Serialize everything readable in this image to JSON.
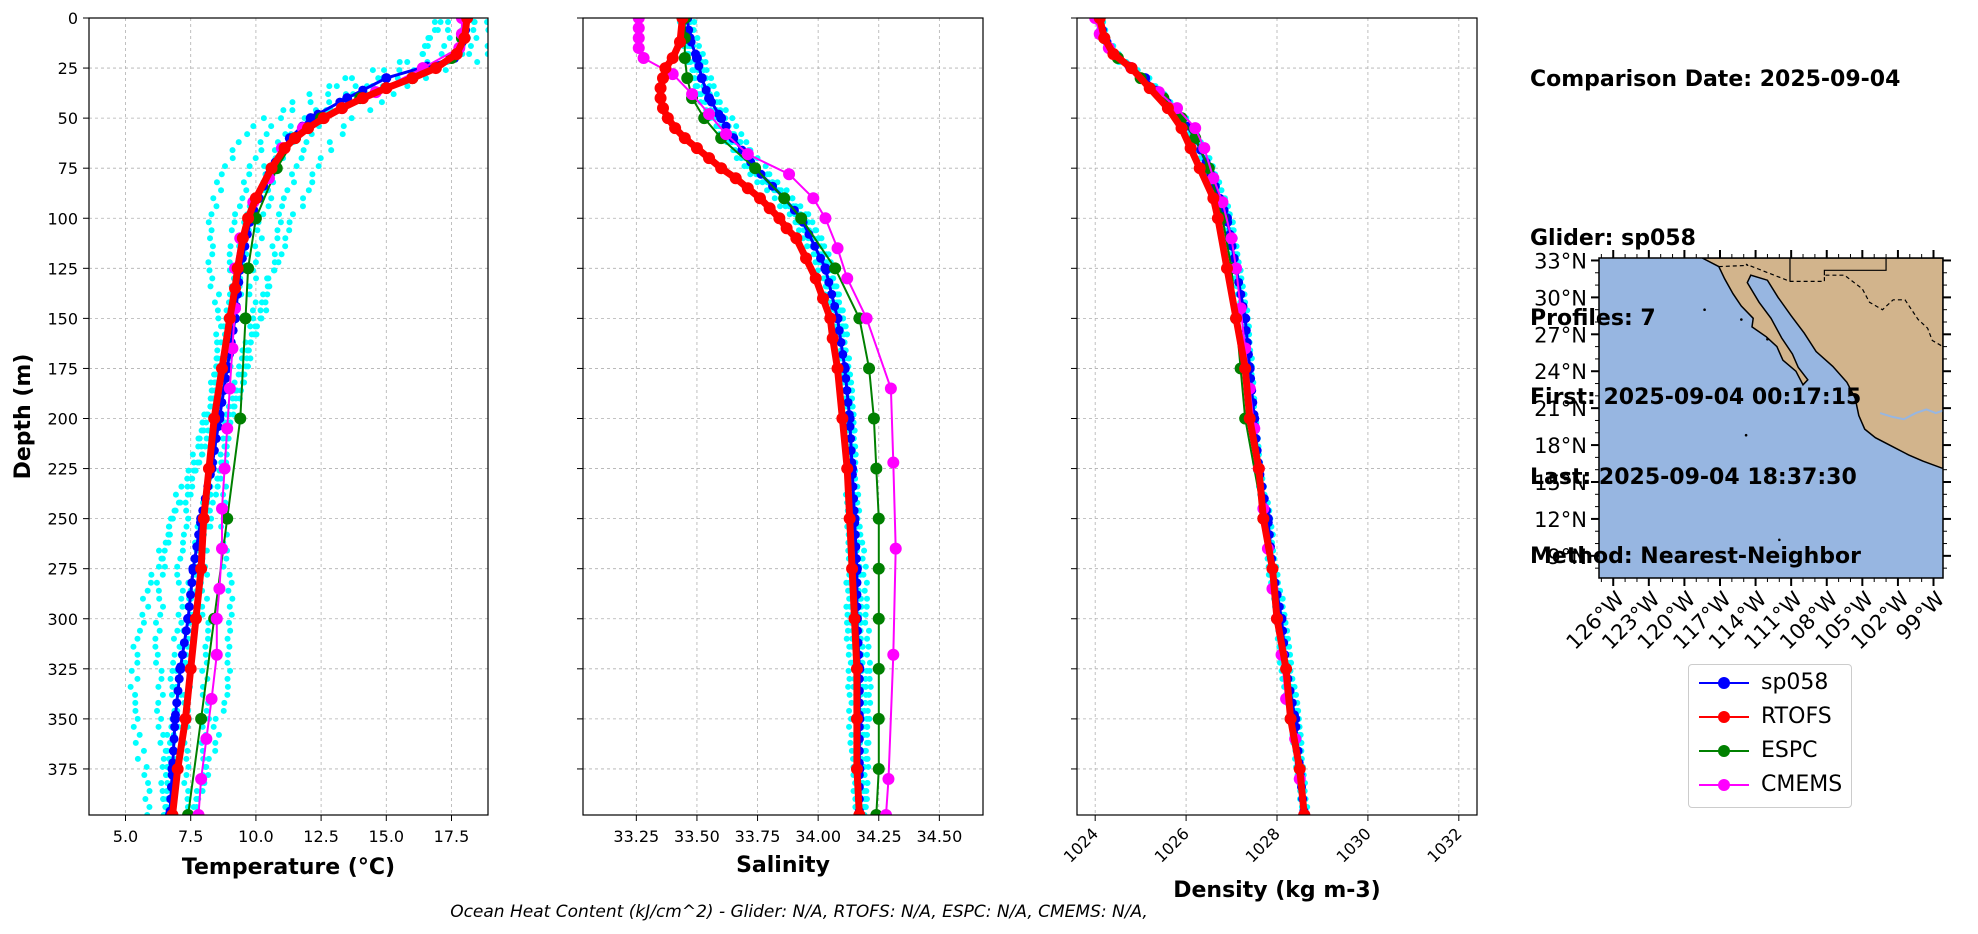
{
  "info": {
    "comparison_date": "Comparison Date: 2025-09-04",
    "glider": "Glider: sp058",
    "profiles": "Profiles: 7",
    "first": "First: 2025-09-04 00:17:15",
    "last": "Last: 2025-09-04 18:37:30",
    "method": "Method: Nearest-Neighbor"
  },
  "footer": "Ocean Heat Content (kJ/cm^2) - Glider: N/A,  RTOFS: N/A,  ESPC: N/A,  CMEMS: N/A,",
  "colors": {
    "sp058": "#0000ff",
    "RTOFS": "#ff0000",
    "ESPC": "#008000",
    "CMEMS": "#ff00ff",
    "profiles": "#00ffff",
    "ocean": "#97b6e1",
    "land": "#d2b48c"
  },
  "legend": [
    {
      "name": "sp058",
      "color": "#0000ff"
    },
    {
      "name": "RTOFS",
      "color": "#ff0000"
    },
    {
      "name": "ESPC",
      "color": "#008000"
    },
    {
      "name": "CMEMS",
      "color": "#ff00ff"
    }
  ],
  "chart_data": [
    {
      "type": "line",
      "xlabel": "Temperature (°C)",
      "ylabel": "Depth (m)",
      "xlim": [
        3.6,
        18.9
      ],
      "ylim": [
        398,
        0
      ],
      "xticks": [
        "5.0",
        "7.5",
        "10.0",
        "12.5",
        "15.0",
        "17.5"
      ],
      "yticks": [
        "0",
        "25",
        "50",
        "75",
        "100",
        "125",
        "150",
        "175",
        "200",
        "225",
        "250",
        "275",
        "300",
        "325",
        "350",
        "375"
      ],
      "grid": true,
      "series": [
        {
          "name": "sp058",
          "depth": [
            0,
            10,
            20,
            30,
            40,
            50,
            60,
            75,
            90,
            100,
            125,
            150,
            175,
            200,
            225,
            250,
            275,
            300,
            325,
            350,
            375,
            398
          ],
          "values": [
            18.1,
            18.0,
            17.6,
            15.0,
            13.5,
            12.1,
            11.3,
            10.6,
            10.1,
            9.8,
            9.4,
            9.2,
            8.9,
            8.6,
            8.3,
            7.9,
            7.6,
            7.4,
            7.1,
            6.9,
            6.8,
            6.7
          ]
        },
        {
          "name": "RTOFS",
          "depth": [
            0,
            10,
            18,
            25,
            30,
            35,
            40,
            45,
            50,
            55,
            60,
            65,
            75,
            90,
            100,
            110,
            125,
            135,
            150,
            175,
            200,
            225,
            250,
            275,
            300,
            325,
            350,
            375,
            398
          ],
          "values": [
            18.1,
            18.0,
            17.7,
            16.9,
            16.0,
            15.0,
            14.1,
            13.3,
            12.6,
            12.0,
            11.5,
            11.1,
            10.6,
            10.0,
            9.7,
            9.5,
            9.3,
            9.2,
            9.0,
            8.7,
            8.4,
            8.2,
            8.0,
            7.9,
            7.7,
            7.5,
            7.3,
            7.0,
            6.8
          ]
        },
        {
          "name": "ESPC",
          "depth": [
            0,
            10,
            20,
            30,
            40,
            50,
            60,
            75,
            100,
            125,
            150,
            200,
            250,
            300,
            350,
            398
          ],
          "values": [
            18.0,
            17.9,
            17.5,
            16.0,
            14.0,
            12.5,
            11.5,
            10.8,
            10.0,
            9.7,
            9.6,
            9.4,
            8.9,
            8.4,
            7.9,
            7.4
          ]
        },
        {
          "name": "CMEMS",
          "depth": [
            0,
            8,
            15,
            25,
            37,
            45,
            55,
            65,
            80,
            92,
            110,
            125,
            145,
            165,
            185,
            205,
            225,
            245,
            265,
            285,
            300,
            318,
            340,
            360,
            380,
            398
          ],
          "values": [
            17.9,
            17.9,
            17.8,
            16.4,
            14.6,
            13.3,
            11.8,
            11.0,
            10.5,
            9.9,
            9.4,
            9.2,
            9.2,
            9.1,
            9.0,
            8.9,
            8.8,
            8.7,
            8.7,
            8.6,
            8.5,
            8.5,
            8.3,
            8.1,
            7.9,
            7.8
          ]
        }
      ]
    },
    {
      "type": "line",
      "xlabel": "Salinity",
      "ylabel": "",
      "xlim": [
        33.03,
        34.68
      ],
      "ylim": [
        398,
        0
      ],
      "xticks": [
        "33.25",
        "33.50",
        "33.75",
        "34.00",
        "34.25",
        "34.50"
      ],
      "grid": true,
      "series": [
        {
          "name": "sp058",
          "depth": [
            0,
            10,
            20,
            30,
            40,
            50,
            60,
            75,
            90,
            100,
            125,
            150,
            175,
            200,
            225,
            250,
            275,
            300,
            325,
            350,
            375,
            398
          ],
          "values": [
            33.46,
            33.47,
            33.5,
            33.52,
            33.55,
            33.6,
            33.65,
            33.74,
            33.86,
            33.93,
            34.03,
            34.08,
            34.11,
            34.13,
            34.14,
            34.15,
            34.16,
            34.16,
            34.17,
            34.17,
            34.17,
            34.17
          ]
        },
        {
          "name": "RTOFS",
          "depth": [
            0,
            12,
            20,
            25,
            30,
            35,
            40,
            45,
            50,
            55,
            60,
            65,
            70,
            75,
            80,
            85,
            90,
            95,
            100,
            105,
            110,
            120,
            130,
            140,
            150,
            160,
            175,
            200,
            225,
            250,
            275,
            300,
            325,
            350,
            375,
            398
          ],
          "values": [
            33.44,
            33.43,
            33.4,
            33.37,
            33.36,
            33.35,
            33.35,
            33.36,
            33.38,
            33.41,
            33.45,
            33.5,
            33.55,
            33.6,
            33.66,
            33.71,
            33.76,
            33.8,
            33.84,
            33.87,
            33.91,
            33.95,
            33.99,
            34.02,
            34.05,
            34.06,
            34.08,
            34.1,
            34.12,
            34.13,
            34.14,
            34.15,
            34.16,
            34.16,
            34.16,
            34.17
          ]
        },
        {
          "name": "ESPC",
          "depth": [
            0,
            10,
            20,
            30,
            40,
            50,
            60,
            75,
            90,
            100,
            125,
            150,
            175,
            200,
            225,
            250,
            275,
            300,
            325,
            350,
            375,
            398
          ],
          "values": [
            33.45,
            33.45,
            33.45,
            33.46,
            33.48,
            33.53,
            33.6,
            33.74,
            33.86,
            33.93,
            34.07,
            34.17,
            34.21,
            34.23,
            34.24,
            34.25,
            34.25,
            34.25,
            34.25,
            34.25,
            34.25,
            34.24
          ]
        },
        {
          "name": "CMEMS",
          "depth": [
            0,
            5,
            10,
            15,
            20,
            28,
            38,
            48,
            58,
            68,
            78,
            90,
            100,
            115,
            130,
            150,
            185,
            222,
            265,
            318,
            380,
            398
          ],
          "values": [
            33.26,
            33.26,
            33.26,
            33.26,
            33.28,
            33.4,
            33.48,
            33.55,
            33.62,
            33.71,
            33.88,
            33.98,
            34.03,
            34.08,
            34.12,
            34.2,
            34.3,
            34.31,
            34.32,
            34.31,
            34.29,
            34.28
          ]
        }
      ]
    },
    {
      "type": "line",
      "xlabel": "Density (kg m-3)",
      "ylabel": "",
      "xlim": [
        1023.6,
        1032.4
      ],
      "ylim": [
        398,
        0
      ],
      "xticks": [
        "1024",
        "1026",
        "1028",
        "1030",
        "1032"
      ],
      "grid": true,
      "series": [
        {
          "name": "sp058",
          "depth": [
            0,
            10,
            20,
            30,
            40,
            50,
            60,
            75,
            100,
            125,
            150,
            175,
            200,
            225,
            250,
            275,
            300,
            325,
            350,
            375,
            398
          ],
          "values": [
            1024.1,
            1024.2,
            1024.5,
            1025.1,
            1025.5,
            1025.9,
            1026.2,
            1026.5,
            1026.9,
            1027.1,
            1027.3,
            1027.4,
            1027.5,
            1027.6,
            1027.8,
            1027.9,
            1028.1,
            1028.2,
            1028.4,
            1028.5,
            1028.6
          ]
        },
        {
          "name": "RTOFS",
          "depth": [
            0,
            10,
            18,
            25,
            35,
            45,
            55,
            65,
            75,
            90,
            100,
            125,
            150,
            175,
            200,
            225,
            250,
            275,
            300,
            325,
            350,
            375,
            398
          ],
          "values": [
            1024.1,
            1024.2,
            1024.4,
            1024.8,
            1025.2,
            1025.6,
            1025.9,
            1026.1,
            1026.3,
            1026.6,
            1026.7,
            1026.9,
            1027.1,
            1027.3,
            1027.4,
            1027.6,
            1027.7,
            1027.9,
            1028.0,
            1028.2,
            1028.3,
            1028.5,
            1028.6
          ]
        },
        {
          "name": "ESPC",
          "depth": [
            0,
            10,
            20,
            30,
            40,
            50,
            60,
            75,
            100,
            125,
            150,
            175,
            200,
            250,
            300,
            350,
            398
          ],
          "values": [
            1024.1,
            1024.2,
            1024.5,
            1025.0,
            1025.5,
            1025.9,
            1026.2,
            1026.5,
            1026.8,
            1027.0,
            1027.1,
            1027.2,
            1027.3,
            1027.7,
            1028.0,
            1028.3,
            1028.6
          ]
        },
        {
          "name": "CMEMS",
          "depth": [
            0,
            8,
            15,
            25,
            37,
            45,
            55,
            65,
            80,
            92,
            110,
            125,
            145,
            165,
            185,
            205,
            225,
            245,
            265,
            285,
            300,
            318,
            340,
            360,
            380,
            398
          ],
          "values": [
            1024.0,
            1024.1,
            1024.3,
            1024.8,
            1025.4,
            1025.8,
            1026.2,
            1026.4,
            1026.6,
            1026.8,
            1027.0,
            1027.1,
            1027.2,
            1027.3,
            1027.4,
            1027.5,
            1027.6,
            1027.7,
            1027.8,
            1027.9,
            1028.0,
            1028.1,
            1028.2,
            1028.4,
            1028.5,
            1028.6
          ]
        }
      ]
    },
    {
      "type": "map",
      "xticks": [
        "126°W",
        "123°W",
        "120°W",
        "117°W",
        "114°W",
        "111°W",
        "108°W",
        "105°W",
        "102°W",
        "99°W"
      ],
      "yticks": [
        "33°N",
        "30°N",
        "27°N",
        "24°N",
        "21°N",
        "18°N",
        "15°N",
        "12°N",
        "9°N"
      ],
      "xlim": [
        -127.2,
        -98.2
      ],
      "ylim": [
        7.2,
        33.2
      ]
    }
  ]
}
